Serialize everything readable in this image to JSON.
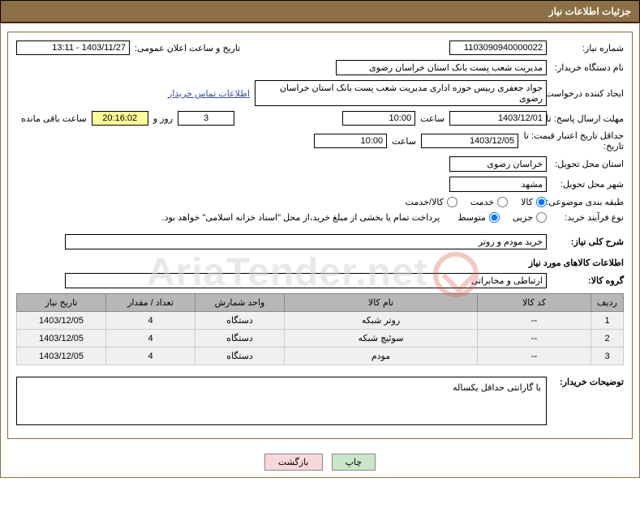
{
  "header": {
    "title": "جزئیات اطلاعات نیاز"
  },
  "fields": {
    "need_no_label": "شماره نیاز:",
    "need_no": "1103090940000022",
    "announce_label": "تاریخ و ساعت اعلان عمومی:",
    "announce_value": "1403/11/27 - 13:11",
    "buyer_org_label": "نام دستگاه خریدار:",
    "buyer_org": "مدیریت شعب پست بانک استان خراسان رضوی",
    "requester_label": "ایجاد کننده درخواست:",
    "requester": "جواد جعفری رییس حوزه اداری مدیریت شعب پست بانک استان خراسان رضوی",
    "contact_link": "اطلاعات تماس خریدار",
    "deadline_label": "مهلت ارسال پاسخ: تا تاریخ:",
    "deadline_date": "1403/12/01",
    "time_label": "ساعت",
    "deadline_time": "10:00",
    "days_value": "3",
    "days_label": "روز و",
    "countdown": "20:16:02",
    "remaining_label": "ساعت باقی مانده",
    "validity_label": "حداقل تاریخ اعتبار قیمت: تا تاریخ:",
    "validity_date": "1403/12/05",
    "validity_time": "10:00",
    "province_label": "استان محل تحویل:",
    "province": "خراسان رضوی",
    "city_label": "شهر محل تحویل:",
    "city": "مشهد",
    "category_label": "طبقه بندی موضوعی:",
    "cat_goods": "کالا",
    "cat_service": "خدمت",
    "cat_both": "کالا/خدمت",
    "process_label": "نوع فرآیند خرید:",
    "proc_minor": "جزیی",
    "proc_medium": "متوسط",
    "process_note": "پرداخت تمام یا بخشی از مبلغ خرید،از محل \"اسناد خزانه اسلامی\" خواهد بود.",
    "summary_label": "شرح کلی نیاز:",
    "summary": "خرید مودم و روتر",
    "goods_section": "اطلاعات کالاهای مورد نیاز",
    "goods_group_label": "گروه کالا:",
    "goods_group": "ارتباطی و مخابراتی",
    "buyer_notes_label": "توضیحات خریدار:",
    "buyer_notes": "با گارانتی حداقل یکساله"
  },
  "table": {
    "columns": [
      "ردیف",
      "کد کالا",
      "نام کالا",
      "واحد شمارش",
      "تعداد / مقدار",
      "تاریخ نیاز"
    ],
    "rows": [
      [
        "1",
        "--",
        "روتر شبکه",
        "دستگاه",
        "4",
        "1403/12/05"
      ],
      [
        "2",
        "--",
        "سوئیچ شبکه",
        "دستگاه",
        "4",
        "1403/12/05"
      ],
      [
        "3",
        "--",
        "مودم",
        "دستگاه",
        "4",
        "1403/12/05"
      ]
    ],
    "col_widths": [
      "40px",
      "140px",
      "auto",
      "110px",
      "110px",
      "110px"
    ]
  },
  "buttons": {
    "print": "چاپ",
    "back": "بازگشت"
  },
  "watermark": "AriaTender.net",
  "colors": {
    "header_bg": "#8c6f44",
    "header_fg": "#ffffff",
    "th_bg": "#b7b7b7",
    "td_bg": "#f0f0f0",
    "highlight": "#ffff99",
    "btn_green": "#c9e7c9",
    "btn_pink": "#f8d7da",
    "link": "#3a4ea0"
  }
}
